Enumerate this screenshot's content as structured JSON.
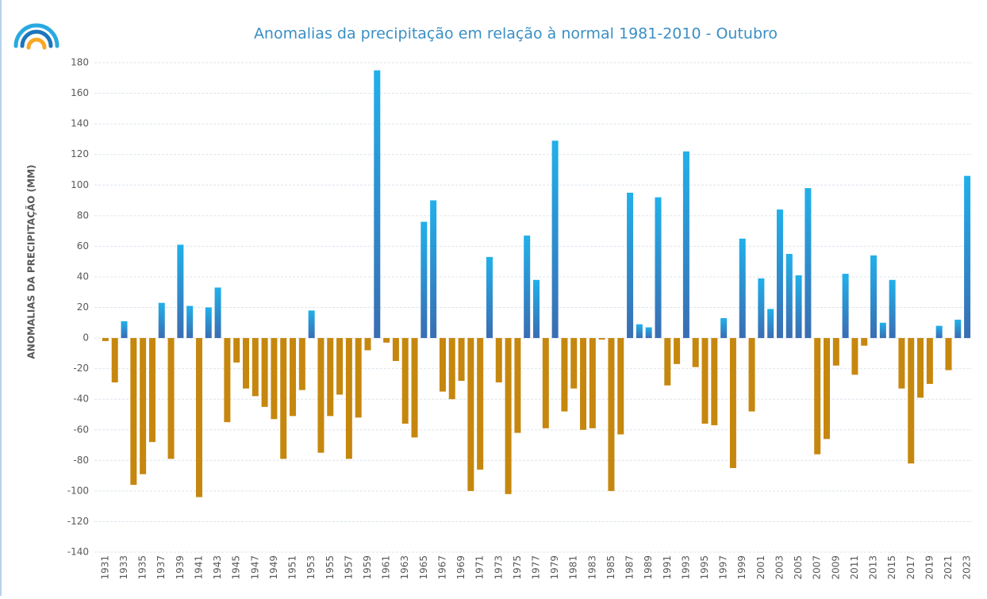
{
  "chart_data": {
    "type": "bar",
    "title": "Anomalias da precipitação em relação à normal 1981-2010 - Outubro",
    "y_label": "ANOMALIAS DA PRECIPITAÇÃO (MM)",
    "categories": [
      "1931",
      null,
      "1933",
      null,
      "1935",
      null,
      "1937",
      null,
      "1939",
      null,
      "1941",
      null,
      "1943",
      null,
      "1945",
      null,
      "1947",
      null,
      "1949",
      null,
      "1951",
      null,
      "1953",
      null,
      "1955",
      null,
      "1957",
      null,
      "1959",
      null,
      "1961",
      null,
      "1963",
      null,
      "1965",
      null,
      "1967",
      null,
      "1969",
      null,
      "1971",
      null,
      "1973",
      null,
      "1975",
      null,
      "1977",
      null,
      "1979",
      null,
      "1981",
      null,
      "1983",
      null,
      "1985",
      null,
      "1987",
      null,
      "1989",
      null,
      "1991",
      null,
      "1993",
      null,
      "1995",
      null,
      "1997",
      null,
      "1999",
      null,
      "2001",
      null,
      "2003",
      null,
      "2005",
      null,
      "2007",
      null,
      "2009",
      null,
      "2011",
      null,
      "2013",
      null,
      "2015",
      null,
      "2017",
      null,
      "2019",
      null,
      "2021",
      null,
      "2023"
    ],
    "values": [
      -2,
      -29,
      11,
      -96,
      -89,
      -68,
      23,
      -79,
      61,
      21,
      -104,
      20,
      33,
      -55,
      -16,
      -33,
      -38,
      -45,
      -53,
      -79,
      -51,
      -34,
      18,
      -75,
      -51,
      -37,
      -79,
      -52,
      -8,
      175,
      -3,
      -15,
      -56,
      -65,
      76,
      90,
      -35,
      -40,
      -28,
      -100,
      -86,
      53,
      -29,
      -102,
      -62,
      67,
      38,
      -59,
      129,
      -48,
      -33,
      -60,
      -59,
      -1,
      -100,
      -63,
      95,
      9,
      7,
      92,
      -31,
      -17,
      122,
      -19,
      -56,
      -57,
      13,
      -85,
      65,
      -48,
      39,
      19,
      84,
      55,
      41,
      98,
      -76,
      -66,
      -18,
      42,
      -24,
      -5,
      54,
      10,
      38,
      -33,
      -82,
      -39,
      -30,
      8,
      -21,
      12,
      106
    ],
    "positive_color": "#21b0ea",
    "negative_color": "#c6870e",
    "ylim": [
      -140,
      180
    ],
    "yticks": [
      -140,
      -120,
      -100,
      -80,
      -60,
      -40,
      -20,
      0,
      20,
      40,
      60,
      80,
      100,
      120,
      140,
      160,
      180
    ],
    "grid": true
  }
}
